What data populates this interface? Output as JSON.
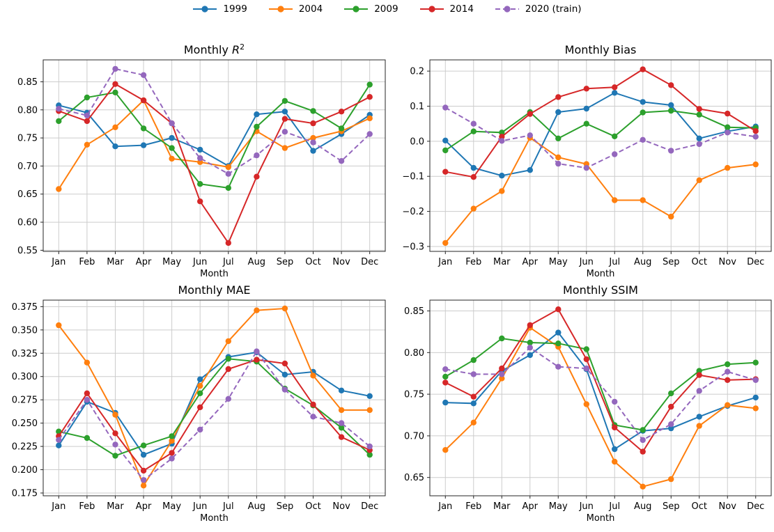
{
  "figure_title": "",
  "months": [
    "Jan",
    "Feb",
    "Mar",
    "Apr",
    "May",
    "Jun",
    "Jul",
    "Aug",
    "Sep",
    "Oct",
    "Nov",
    "Dec"
  ],
  "legend": {
    "items": [
      {
        "label": "1999",
        "color": "#1f77b4",
        "dashed": false
      },
      {
        "label": "2004",
        "color": "#ff7f0e",
        "dashed": false
      },
      {
        "label": "2009",
        "color": "#2ca02c",
        "dashed": false
      },
      {
        "label": "2014",
        "color": "#d62728",
        "dashed": false
      },
      {
        "label": "2020 (train)",
        "color": "#9467bd",
        "dashed": true
      }
    ]
  },
  "chart_data": [
    {
      "type": "line",
      "title": "Monthly R²",
      "title_parts": [
        {
          "t": "Monthly "
        },
        {
          "t": "R",
          "italic": true
        },
        {
          "t": "2",
          "sup": true
        }
      ],
      "xlabel": "Month",
      "legend_position": "top-center-shared",
      "grid": true,
      "ylim": [
        0.548,
        0.889
      ],
      "yticks": [
        0.55,
        0.6,
        0.65,
        0.7,
        0.75,
        0.8,
        0.85
      ],
      "yticklabels": [
        "0.55",
        "0.60",
        "0.65",
        "0.70",
        "0.75",
        "0.80",
        "0.85"
      ],
      "series": [
        {
          "name": "1999",
          "values": [
            0.808,
            0.795,
            0.735,
            0.737,
            0.75,
            0.729,
            0.7,
            0.792,
            0.797,
            0.727,
            0.757,
            0.791
          ]
        },
        {
          "name": "2004",
          "values": [
            0.659,
            0.738,
            0.769,
            0.817,
            0.713,
            0.707,
            0.698,
            0.762,
            0.732,
            0.75,
            0.762,
            0.785
          ]
        },
        {
          "name": "2009",
          "values": [
            0.78,
            0.822,
            0.831,
            0.767,
            0.732,
            0.668,
            0.661,
            0.77,
            0.816,
            0.798,
            0.767,
            0.845
          ]
        },
        {
          "name": "2014",
          "values": [
            0.798,
            0.78,
            0.846,
            0.817,
            0.776,
            0.637,
            0.563,
            0.681,
            0.784,
            0.776,
            0.797,
            0.823
          ]
        },
        {
          "name": "2020 (train)",
          "values": [
            0.802,
            0.79,
            0.873,
            0.862,
            0.776,
            0.714,
            0.686,
            0.719,
            0.761,
            0.742,
            0.709,
            0.757
          ]
        }
      ]
    },
    {
      "type": "line",
      "title": "Monthly Bias",
      "title_parts": [
        {
          "t": "Monthly Bias"
        }
      ],
      "xlabel": "Month",
      "grid": true,
      "ylim": [
        -0.314,
        0.232
      ],
      "yticks": [
        -0.3,
        -0.2,
        -0.1,
        0.0,
        0.1,
        0.2
      ],
      "yticklabels": [
        "−0.3",
        "−0.2",
        "−0.1",
        "0.0",
        "0.1",
        "0.2"
      ],
      "series": [
        {
          "name": "1999",
          "values": [
            0.002,
            -0.076,
            -0.098,
            -0.082,
            0.083,
            0.093,
            0.138,
            0.112,
            0.103,
            0.008,
            0.028,
            0.042
          ]
        },
        {
          "name": "2004",
          "values": [
            -0.29,
            -0.192,
            -0.142,
            0.01,
            -0.046,
            -0.065,
            -0.168,
            -0.168,
            -0.215,
            -0.111,
            -0.076,
            -0.066
          ]
        },
        {
          "name": "2009",
          "values": [
            -0.026,
            0.028,
            0.025,
            0.083,
            0.008,
            0.05,
            0.014,
            0.082,
            0.087,
            0.076,
            0.04,
            0.038
          ]
        },
        {
          "name": "2014",
          "values": [
            -0.087,
            -0.102,
            0.013,
            0.078,
            0.126,
            0.15,
            0.154,
            0.205,
            0.16,
            0.092,
            0.079,
            0.029
          ]
        },
        {
          "name": "2020 (train)",
          "values": [
            0.096,
            0.05,
            0.001,
            0.017,
            -0.064,
            -0.076,
            -0.037,
            0.004,
            -0.027,
            -0.008,
            0.025,
            0.013
          ]
        }
      ]
    },
    {
      "type": "line",
      "title": "Monthly MAE",
      "title_parts": [
        {
          "t": "Monthly MAE"
        }
      ],
      "xlabel": "Month",
      "grid": true,
      "ylim": [
        0.172,
        0.382
      ],
      "yticks": [
        0.175,
        0.2,
        0.225,
        0.25,
        0.275,
        0.3,
        0.325,
        0.35,
        0.375
      ],
      "yticklabels": [
        "0.175",
        "0.200",
        "0.225",
        "0.250",
        "0.275",
        "0.300",
        "0.325",
        "0.350",
        "0.375"
      ],
      "series": [
        {
          "name": "1999",
          "values": [
            0.226,
            0.273,
            0.261,
            0.216,
            0.228,
            0.297,
            0.321,
            0.326,
            0.302,
            0.305,
            0.285,
            0.279
          ]
        },
        {
          "name": "2004",
          "values": [
            0.355,
            0.315,
            0.259,
            0.183,
            0.231,
            0.29,
            0.338,
            0.371,
            0.373,
            0.301,
            0.264,
            0.264
          ]
        },
        {
          "name": "2009",
          "values": [
            0.241,
            0.234,
            0.215,
            0.226,
            0.236,
            0.282,
            0.319,
            0.316,
            0.287,
            0.269,
            0.245,
            0.216
          ]
        },
        {
          "name": "2014",
          "values": [
            0.236,
            0.282,
            0.239,
            0.199,
            0.218,
            0.267,
            0.308,
            0.318,
            0.314,
            0.27,
            0.235,
            0.221
          ]
        },
        {
          "name": "2020 (train)",
          "values": [
            0.232,
            0.275,
            0.227,
            0.189,
            0.212,
            0.243,
            0.276,
            0.327,
            0.286,
            0.257,
            0.25,
            0.225
          ]
        }
      ]
    },
    {
      "type": "line",
      "title": "Monthly SSIM",
      "title_parts": [
        {
          "t": "Monthly SSIM"
        }
      ],
      "xlabel": "Month",
      "grid": true,
      "ylim": [
        0.628,
        0.863
      ],
      "yticks": [
        0.65,
        0.7,
        0.75,
        0.8,
        0.85
      ],
      "yticklabels": [
        "0.65",
        "0.70",
        "0.75",
        "0.80",
        "0.85"
      ],
      "series": [
        {
          "name": "1999",
          "values": [
            0.74,
            0.739,
            0.778,
            0.797,
            0.824,
            0.78,
            0.684,
            0.706,
            0.709,
            0.723,
            0.736,
            0.746
          ]
        },
        {
          "name": "2004",
          "values": [
            0.683,
            0.716,
            0.769,
            0.83,
            0.807,
            0.738,
            0.669,
            0.639,
            0.648,
            0.712,
            0.737,
            0.733
          ]
        },
        {
          "name": "2009",
          "values": [
            0.771,
            0.791,
            0.817,
            0.812,
            0.811,
            0.804,
            0.713,
            0.707,
            0.751,
            0.778,
            0.786,
            0.788
          ]
        },
        {
          "name": "2014",
          "values": [
            0.764,
            0.747,
            0.781,
            0.833,
            0.852,
            0.792,
            0.71,
            0.681,
            0.735,
            0.773,
            0.767,
            0.768
          ]
        },
        {
          "name": "2020 (train)",
          "values": [
            0.78,
            0.774,
            0.774,
            0.806,
            0.783,
            0.781,
            0.741,
            0.695,
            0.714,
            0.754,
            0.777,
            0.767
          ]
        }
      ]
    }
  ]
}
